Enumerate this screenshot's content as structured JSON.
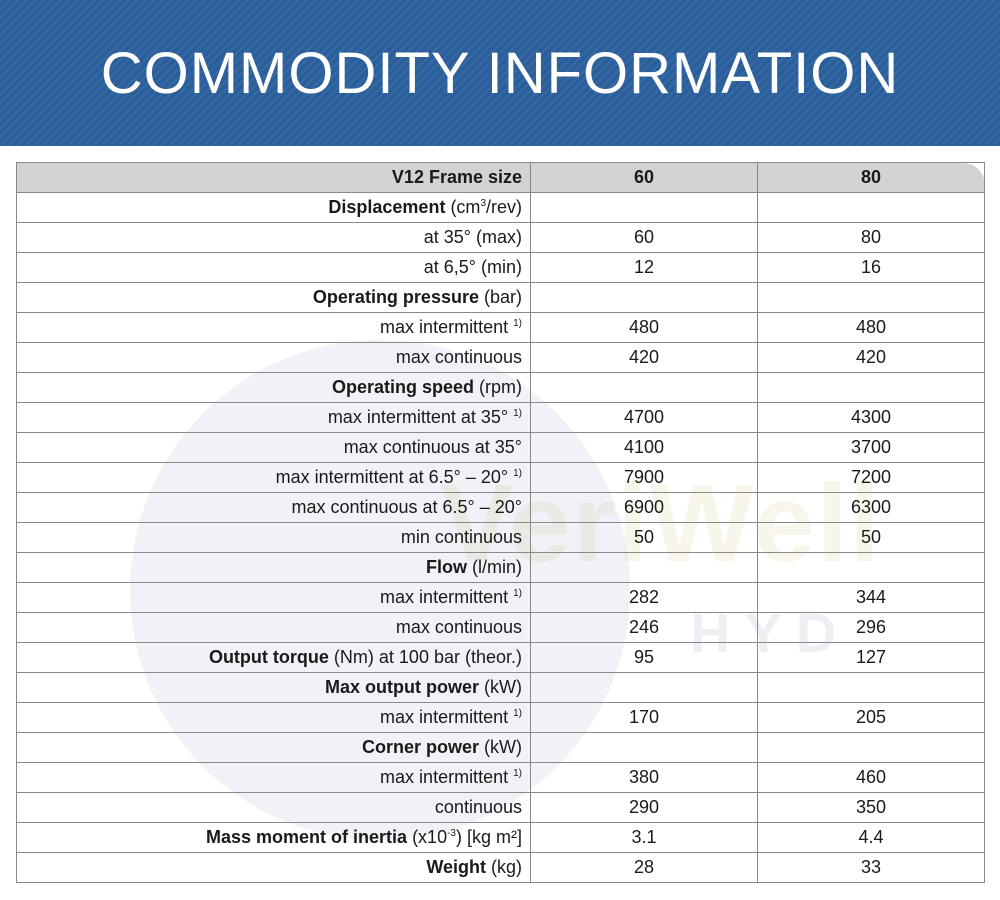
{
  "banner": {
    "title": "COMMODITY INFORMATION"
  },
  "watermark": {
    "brand": "VeriWell",
    "sub": "HYD"
  },
  "table": {
    "header": {
      "label": "V12 Frame size",
      "col1": "60",
      "col2": "80"
    },
    "rows": [
      {
        "bold": "Displacement",
        "plain": " (cm",
        "sup_mid": "3",
        "plain2": "/rev)",
        "sup": "",
        "v1": "",
        "v2": ""
      },
      {
        "bold": "",
        "plain": "at 35° (max)",
        "sup_mid": "",
        "plain2": "",
        "sup": "",
        "v1": "60",
        "v2": "80"
      },
      {
        "bold": "",
        "plain": "at 6,5° (min)",
        "sup_mid": "",
        "plain2": "",
        "sup": "",
        "v1": "12",
        "v2": "16"
      },
      {
        "bold": "Operating pressure",
        "plain": " (bar)",
        "sup_mid": "",
        "plain2": "",
        "sup": "",
        "v1": "",
        "v2": ""
      },
      {
        "bold": "",
        "plain": "max intermittent ",
        "sup_mid": "",
        "plain2": "",
        "sup": "1)",
        "v1": "480",
        "v2": "480"
      },
      {
        "bold": "",
        "plain": "max continuous",
        "sup_mid": "",
        "plain2": "",
        "sup": "",
        "v1": "420",
        "v2": "420"
      },
      {
        "bold": "Operating speed",
        "plain": " (rpm)",
        "sup_mid": "",
        "plain2": "",
        "sup": "",
        "v1": "",
        "v2": ""
      },
      {
        "bold": "",
        "plain": "max intermittent at 35° ",
        "sup_mid": "",
        "plain2": "",
        "sup": "1)",
        "v1": "4700",
        "v2": "4300"
      },
      {
        "bold": "",
        "plain": "max continuous at 35°",
        "sup_mid": "",
        "plain2": "",
        "sup": "",
        "v1": "4100",
        "v2": "3700"
      },
      {
        "bold": "",
        "plain": "max intermittent at 6.5° – 20° ",
        "sup_mid": "",
        "plain2": "",
        "sup": "1)",
        "v1": "7900",
        "v2": "7200"
      },
      {
        "bold": "",
        "plain": "max continuous at 6.5° – 20°",
        "sup_mid": "",
        "plain2": "",
        "sup": "",
        "v1": "6900",
        "v2": "6300"
      },
      {
        "bold": "",
        "plain": "min continuous",
        "sup_mid": "",
        "plain2": "",
        "sup": "",
        "v1": "50",
        "v2": "50"
      },
      {
        "bold": "Flow",
        "plain": " (l/min)",
        "sup_mid": "",
        "plain2": "",
        "sup": "",
        "v1": "",
        "v2": ""
      },
      {
        "bold": "",
        "plain": "max intermittent ",
        "sup_mid": "",
        "plain2": "",
        "sup": "1)",
        "v1": "282",
        "v2": "344"
      },
      {
        "bold": "",
        "plain": "max continuous",
        "sup_mid": "",
        "plain2": "",
        "sup": "",
        "v1": "246",
        "v2": "296"
      },
      {
        "bold": "Output torque",
        "plain": " (Nm) at 100 bar (theor.)",
        "sup_mid": "",
        "plain2": "",
        "sup": "",
        "v1": "95",
        "v2": "127"
      },
      {
        "bold": "Max output power",
        "plain": " (kW)",
        "sup_mid": "",
        "plain2": "",
        "sup": "",
        "v1": "",
        "v2": ""
      },
      {
        "bold": "",
        "plain": "max intermittent ",
        "sup_mid": "",
        "plain2": "",
        "sup": "1)",
        "v1": "170",
        "v2": "205"
      },
      {
        "bold": "Corner power",
        "plain": " (kW)",
        "sup_mid": "",
        "plain2": "",
        "sup": "",
        "v1": "",
        "v2": ""
      },
      {
        "bold": "",
        "plain": "max intermittent ",
        "sup_mid": "",
        "plain2": "",
        "sup": "1)",
        "v1": "380",
        "v2": "460"
      },
      {
        "bold": "",
        "plain": "continuous",
        "sup_mid": "",
        "plain2": "",
        "sup": "",
        "v1": "290",
        "v2": "350"
      },
      {
        "bold": "Mass moment of inertia",
        "plain": " (x10",
        "sup_mid": "-3",
        "plain2": ") [kg m²]",
        "sup": "",
        "v1": "3.1",
        "v2": "4.4"
      },
      {
        "bold": "Weight",
        "plain": " (kg)",
        "sup_mid": "",
        "plain2": "",
        "sup": "",
        "v1": "28",
        "v2": "33"
      }
    ]
  },
  "colors": {
    "banner": "#2a5f9c",
    "header_row": "#d3d3d3",
    "grid": "#8a8a8a"
  }
}
